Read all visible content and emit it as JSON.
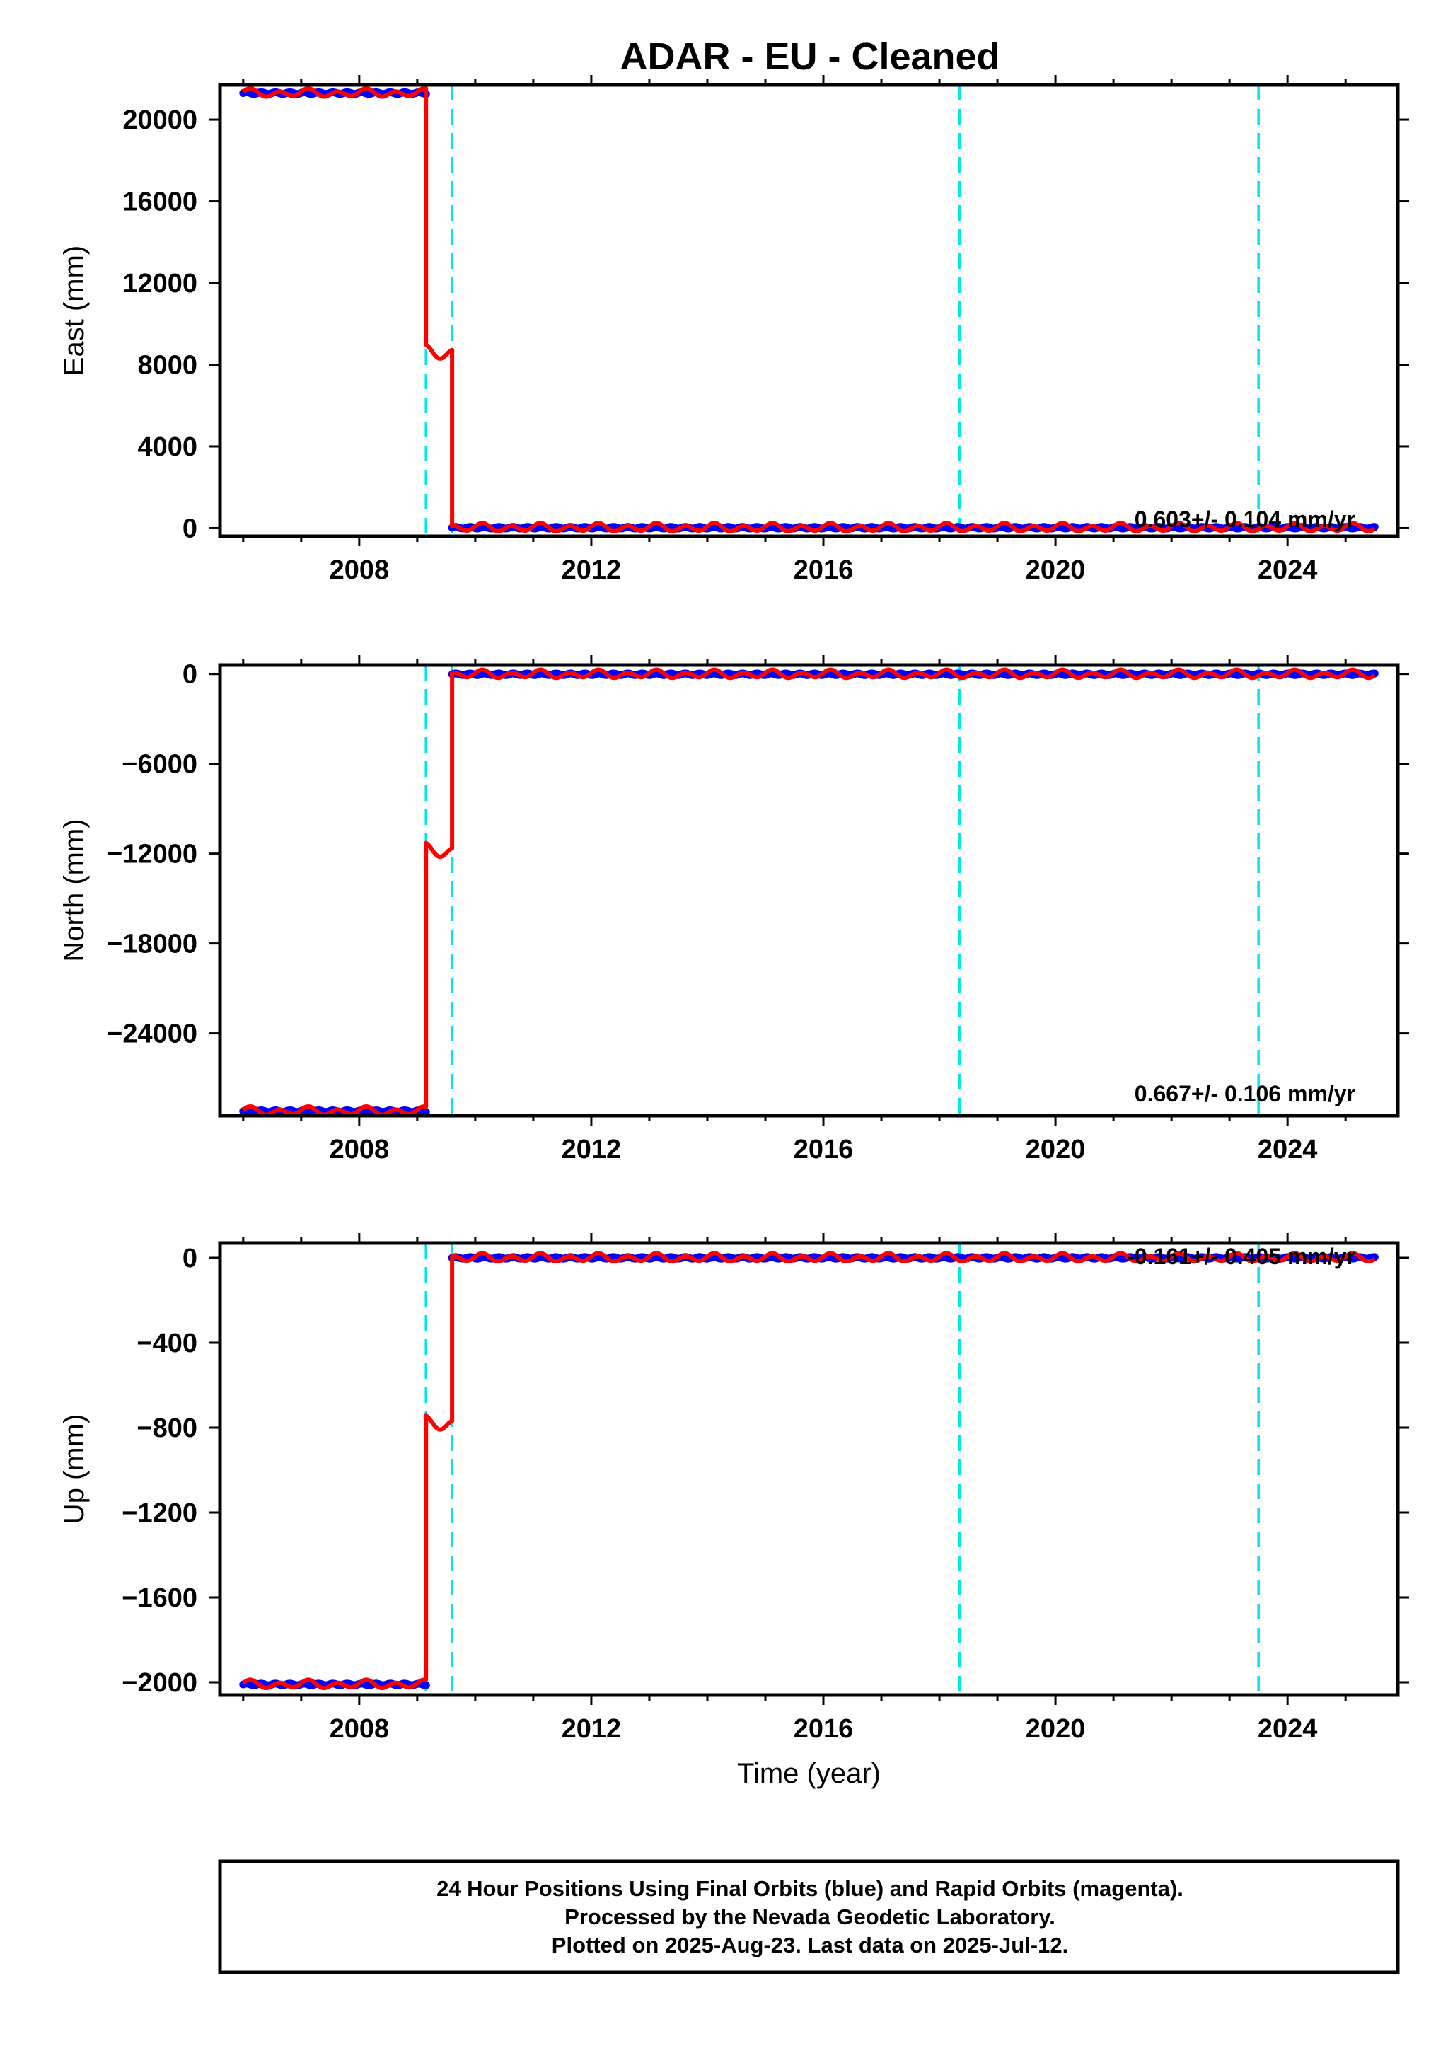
{
  "title": "ADAR  - EU - Cleaned",
  "colors": {
    "final_orbits": "#0000ff",
    "model_fit": "#ff0000",
    "event_lines": "#00e5ee",
    "frame": "#000000"
  },
  "chart_data": [
    {
      "type": "scatter",
      "component": "East",
      "ylabel": "East (mm)",
      "xlabel": "",
      "xlim": [
        2005.6,
        2025.9
      ],
      "ylim": [
        -400,
        21700
      ],
      "xticks": [
        "2008",
        "2012",
        "2016",
        "2020",
        "2024"
      ],
      "yticks": [
        "0",
        "4000",
        "8000",
        "12000",
        "16000",
        "20000"
      ],
      "rate_text": "0.603+/- 0.104 mm/yr",
      "event_lines_x": [
        2009.15,
        2009.6,
        2018.35,
        2023.5
      ],
      "segments": [
        {
          "x_start": 2006.0,
          "x_end": 2009.15,
          "y_level": 21300
        },
        {
          "x_start": 2009.15,
          "x_end": 2009.6,
          "y_level": 8600
        },
        {
          "x_start": 2009.6,
          "x_end": 2025.5,
          "y_level": 20
        }
      ],
      "series": [
        {
          "name": "Final Orbits (blue)",
          "style": "points"
        },
        {
          "name": "Rapid Orbits (magenta)",
          "style": "points"
        },
        {
          "name": "Model fit",
          "style": "line"
        }
      ]
    },
    {
      "type": "scatter",
      "component": "North",
      "ylabel": "North (mm)",
      "xlabel": "",
      "xlim": [
        2005.6,
        2025.9
      ],
      "ylim": [
        -29500,
        600
      ],
      "xticks": [
        "2008",
        "2012",
        "2016",
        "2020",
        "2024"
      ],
      "yticks": [
        "0",
        "−6000",
        "−12000",
        "−18000",
        "−24000"
      ],
      "rate_text": "0.667+/- 0.106 mm/yr",
      "event_lines_x": [
        2009.15,
        2009.6,
        2018.35,
        2023.5
      ],
      "segments": [
        {
          "x_start": 2006.0,
          "x_end": 2009.15,
          "y_level": -29200
        },
        {
          "x_start": 2009.15,
          "x_end": 2009.6,
          "y_level": -11800
        },
        {
          "x_start": 2009.6,
          "x_end": 2025.5,
          "y_level": -20
        }
      ]
    },
    {
      "type": "scatter",
      "component": "Up",
      "ylabel": "Up (mm)",
      "xlabel": "Time (year)",
      "xlim": [
        2005.6,
        2025.9
      ],
      "ylim": [
        -2060,
        70
      ],
      "xticks": [
        "2008",
        "2012",
        "2016",
        "2020",
        "2024"
      ],
      "yticks": [
        "0",
        "−400",
        "−800",
        "−1200",
        "−1600",
        "−2000"
      ],
      "rate_text": "-0.161+/- 0.405 mm/yr",
      "event_lines_x": [
        2009.15,
        2009.6,
        2018.35,
        2023.5
      ],
      "segments": [
        {
          "x_start": 2006.0,
          "x_end": 2009.15,
          "y_level": -2010
        },
        {
          "x_start": 2009.15,
          "x_end": 2009.6,
          "y_level": -780
        },
        {
          "x_start": 2009.6,
          "x_end": 2025.5,
          "y_level": 0
        }
      ]
    }
  ],
  "footer": {
    "line1": "24 Hour Positions Using Final Orbits (blue) and Rapid Orbits (magenta).",
    "line2": "Processed by the Nevada Geodetic Laboratory.",
    "line3": "Plotted on 2025-Aug-23. Last data on 2025-Jul-12."
  }
}
